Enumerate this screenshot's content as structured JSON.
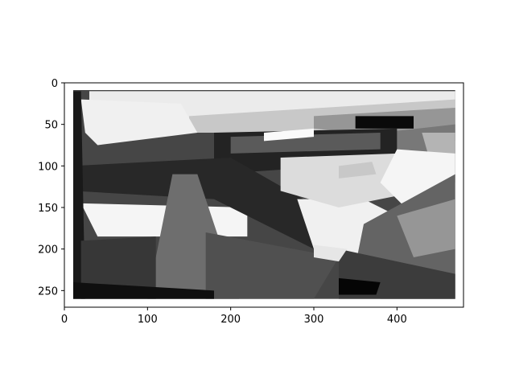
{
  "chart_data": {
    "type": "heatmap",
    "colormap": "grayscale",
    "background_color": "#ffffff",
    "image_width": 480,
    "image_height": 270,
    "xlim": [
      0,
      480
    ],
    "ylim": [
      270,
      0
    ],
    "x_ticks": [
      0,
      100,
      200,
      300,
      400
    ],
    "y_ticks": [
      0,
      50,
      100,
      150,
      200,
      250
    ],
    "x_tick_labels": [
      "0",
      "100",
      "200",
      "300",
      "400"
    ],
    "y_tick_labels": [
      "0",
      "50",
      "100",
      "150",
      "200",
      "250"
    ],
    "valid_region": {
      "x": [
        10,
        470
      ],
      "y": [
        8,
        260
      ]
    },
    "grid": false,
    "title": "",
    "xlabel": "",
    "ylabel": ""
  }
}
